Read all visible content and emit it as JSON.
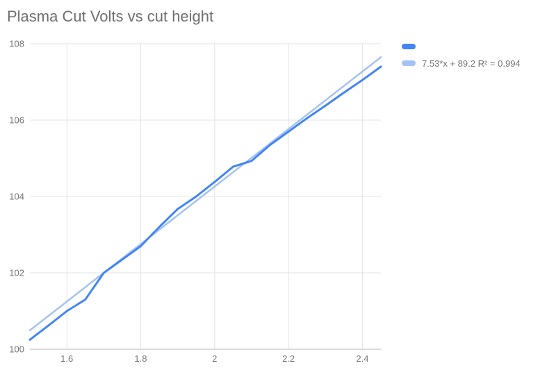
{
  "title": "Plasma Cut Volts vs cut height",
  "colors": {
    "series": "#4285f4",
    "trendline": "#a4c2f4",
    "gridline": "#e3e3e3",
    "axis_baseline": "#b7b7b7",
    "tick_text": "#757575",
    "title_text": "#6e6e6e",
    "background": "#ffffff"
  },
  "legend": {
    "position": "right",
    "items": [
      {
        "color": "#4285f4",
        "label": ""
      },
      {
        "color": "#a4c2f4",
        "label": "7.53*x + 89.2 R² = 0.994"
      }
    ]
  },
  "chart_data": {
    "type": "line",
    "title": "Plasma Cut Volts vs cut height",
    "xlabel": "",
    "ylabel": "",
    "xlim": [
      1.5,
      2.45
    ],
    "ylim": [
      100,
      108
    ],
    "grid": true,
    "legend_position": "right",
    "x": [
      1.5,
      1.55,
      1.6,
      1.65,
      1.7,
      1.75,
      1.8,
      1.85,
      1.9,
      1.95,
      2.0,
      2.05,
      2.1,
      2.15,
      2.2,
      2.25,
      2.3,
      2.35,
      2.4,
      2.45
    ],
    "series": [
      {
        "color": "#4285f4",
        "values": [
          100.25,
          100.62,
          101.0,
          101.3,
          102.0,
          102.35,
          102.7,
          103.2,
          103.67,
          104.0,
          104.38,
          104.78,
          104.93,
          105.35,
          105.7,
          106.05,
          106.38,
          106.72,
          107.05,
          107.4
        ]
      }
    ],
    "trendline": {
      "slope": 7.53,
      "intercept": 89.2,
      "r2": 0.994,
      "color": "#a4c2f4",
      "label": "7.53*x + 89.2 R² = 0.994"
    },
    "xticks": [
      {
        "v": 1.6,
        "label": "1.6"
      },
      {
        "v": 1.8,
        "label": "1.8"
      },
      {
        "v": 2.0,
        "label": "2"
      },
      {
        "v": 2.2,
        "label": "2.2"
      },
      {
        "v": 2.4,
        "label": "2.4"
      }
    ],
    "yticks": [
      {
        "v": 100,
        "label": "100"
      },
      {
        "v": 102,
        "label": "102"
      },
      {
        "v": 104,
        "label": "104"
      },
      {
        "v": 106,
        "label": "106"
      },
      {
        "v": 108,
        "label": "108"
      }
    ]
  }
}
